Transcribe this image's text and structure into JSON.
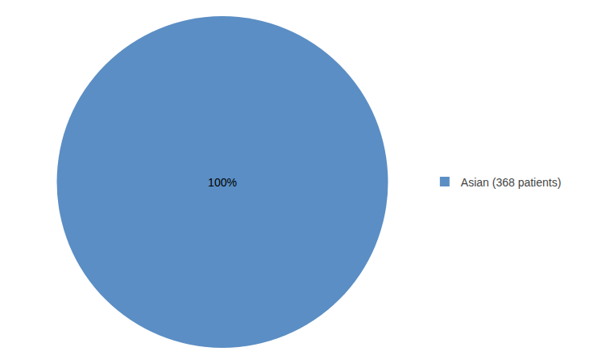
{
  "chart_data": {
    "type": "pie",
    "categories": [
      "Asian (368 patients)"
    ],
    "values": [
      100
    ],
    "value_labels": [
      "100%"
    ],
    "colors": [
      "#5b8ec4"
    ],
    "data_labels": true,
    "legend": "right"
  }
}
